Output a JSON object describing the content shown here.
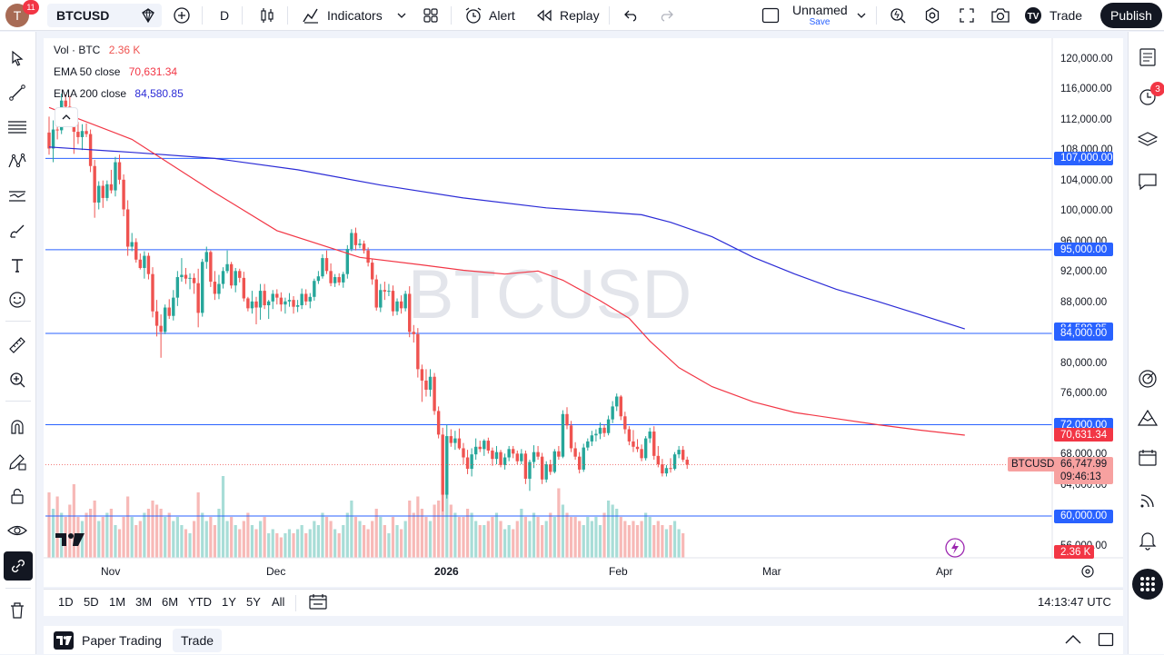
{
  "topbar": {
    "avatar_letter": "T",
    "notifications": "11",
    "symbol": "BTCUSD",
    "interval": "D",
    "indicators_label": "Indicators",
    "alert_label": "Alert",
    "replay_label": "Replay",
    "layout_name": "Unnamed",
    "layout_save": "Save",
    "trade_label": "Trade",
    "publish_label": "Publish"
  },
  "legend": {
    "vol_label": "Vol · BTC",
    "vol_value": "2.36 K",
    "ema50_label": "EMA 50 close",
    "ema50_value": "70,631.34",
    "ema200_label": "EMA 200 close",
    "ema200_value": "84,580.85"
  },
  "watermark": "BTCUSD",
  "price_axis": {
    "ticks": [
      "120,000.00",
      "116,000.00",
      "112,000.00",
      "108,000.00",
      "104,000.00",
      "100,000.00",
      "96,000.00",
      "92,000.00",
      "88,000.00",
      "84,000.00",
      "80,000.00",
      "76,000.00",
      "72,000.00",
      "68,000.00",
      "64,000.00",
      "60,000.00",
      "56,000.00"
    ],
    "ema200_tag": "84,580.85",
    "ema50_tag": "70,631.34",
    "last_price": "66,747.99",
    "countdown": "09:46:13",
    "symbol_tag": "BTCUSD",
    "volume_tag": "2.36 K"
  },
  "time_axis": {
    "ticks": [
      "Nov",
      "Dec",
      "2026",
      "Feb",
      "Mar",
      "Apr"
    ]
  },
  "ranges": [
    "1D",
    "5D",
    "1M",
    "3M",
    "6M",
    "YTD",
    "1Y",
    "5Y",
    "All"
  ],
  "clock": "14:13:47 UTC",
  "panel": {
    "paper_trading": "Paper Trading",
    "trade": "Trade"
  },
  "right_toolbar": {
    "alerts_badge": "3"
  },
  "colors": {
    "up": "#26a69a",
    "down": "#ef5350",
    "ema50": "#f23645",
    "ema200": "#2b2bd6",
    "hline": "#2962ff",
    "tag_blue": "#2962ff",
    "tag_red": "#f23645"
  },
  "chart_data": {
    "type": "candlestick",
    "symbol": "BTCUSD",
    "ylim": [
      54000,
      122500
    ],
    "horizontal_levels": [
      107000,
      95000,
      84000,
      72000,
      60000
    ],
    "x_ticks": [
      "Nov",
      "Dec",
      "2026",
      "Feb",
      "Mar",
      "Apr"
    ],
    "ohlc": [
      [
        110400,
        112500,
        107500,
        108300
      ],
      [
        108300,
        112000,
        106500,
        110800
      ],
      [
        110800,
        113200,
        109500,
        110700
      ],
      [
        110700,
        115500,
        110200,
        114600
      ],
      [
        114600,
        115400,
        113400,
        113800
      ],
      [
        113800,
        115200,
        111200,
        111800
      ],
      [
        111800,
        113500,
        107600,
        110500
      ],
      [
        110500,
        111800,
        108900,
        109800
      ],
      [
        109800,
        111500,
        108100,
        110600
      ],
      [
        110600,
        111600,
        109800,
        110200
      ],
      [
        110200,
        110800,
        105200,
        106000
      ],
      [
        106000,
        106800,
        99200,
        101200
      ],
      [
        101200,
        104000,
        100300,
        103400
      ],
      [
        103400,
        104100,
        100500,
        101800
      ],
      [
        101800,
        104100,
        101400,
        103600
      ],
      [
        103600,
        105500,
        102400,
        102800
      ],
      [
        102800,
        107200,
        102000,
        106500
      ],
      [
        106500,
        107500,
        103600,
        104200
      ],
      [
        104200,
        104900,
        99400,
        100300
      ],
      [
        100300,
        101500,
        94200,
        95400
      ],
      [
        95400,
        97200,
        94800,
        96000
      ],
      [
        96000,
        96500,
        93300,
        93700
      ],
      [
        93700,
        94500,
        92400,
        92600
      ],
      [
        92600,
        94800,
        91200,
        94200
      ],
      [
        94200,
        94600,
        91100,
        91800
      ],
      [
        91800,
        92700,
        86100,
        86900
      ],
      [
        86900,
        88400,
        83600,
        85000
      ],
      [
        85000,
        86500,
        80800,
        84200
      ],
      [
        84200,
        87800,
        83900,
        87400
      ],
      [
        87400,
        88500,
        85900,
        86300
      ],
      [
        86300,
        89700,
        85700,
        88700
      ],
      [
        88700,
        92200,
        87600,
        91400
      ],
      [
        91400,
        93900,
        90800,
        91700
      ],
      [
        91700,
        92600,
        90500,
        91200
      ],
      [
        91200,
        91900,
        89800,
        91300
      ],
      [
        91300,
        91900,
        89200,
        90600
      ],
      [
        90600,
        92500,
        84800,
        86700
      ],
      [
        86700,
        93800,
        86200,
        93400
      ],
      [
        93400,
        95400,
        92500,
        94700
      ],
      [
        94700,
        94900,
        90100,
        90800
      ],
      [
        90800,
        92200,
        88400,
        89200
      ],
      [
        89200,
        91700,
        88500,
        90500
      ],
      [
        90500,
        92700,
        89900,
        92200
      ],
      [
        92200,
        94900,
        91900,
        93100
      ],
      [
        93100,
        93400,
        89900,
        90300
      ],
      [
        90300,
        92600,
        89400,
        92200
      ],
      [
        92200,
        92500,
        90700,
        91300
      ],
      [
        91300,
        92100,
        88200,
        88600
      ],
      [
        88600,
        88800,
        86900,
        87300
      ],
      [
        87300,
        89600,
        86600,
        88200
      ],
      [
        88200,
        88800,
        85200,
        87400
      ],
      [
        87400,
        90500,
        85800,
        89600
      ],
      [
        89600,
        90500,
        87200,
        87700
      ],
      [
        87700,
        88400,
        85900,
        88200
      ],
      [
        88200,
        89700,
        87200,
        89200
      ],
      [
        89200,
        89800,
        87800,
        88700
      ],
      [
        88700,
        89400,
        86900,
        87800
      ],
      [
        87800,
        88700,
        86600,
        88200
      ],
      [
        88200,
        89300,
        87500,
        88400
      ],
      [
        88400,
        88900,
        86600,
        87500
      ],
      [
        87500,
        88400,
        86800,
        87700
      ],
      [
        87700,
        89900,
        87200,
        89200
      ],
      [
        89200,
        89800,
        87700,
        88200
      ],
      [
        88200,
        89300,
        87300,
        88800
      ],
      [
        88800,
        91200,
        88300,
        90900
      ],
      [
        90900,
        92200,
        90500,
        91500
      ],
      [
        91500,
        94400,
        91200,
        93900
      ],
      [
        93900,
        94900,
        91800,
        92200
      ],
      [
        92200,
        93200,
        90200,
        90600
      ],
      [
        90600,
        91800,
        90100,
        91400
      ],
      [
        91400,
        91900,
        90300,
        90700
      ],
      [
        90700,
        92100,
        90000,
        91800
      ],
      [
        91800,
        95600,
        91200,
        95100
      ],
      [
        95100,
        97700,
        94800,
        97200
      ],
      [
        97200,
        97900,
        94900,
        95600
      ],
      [
        95600,
        96400,
        95200,
        95800
      ],
      [
        95800,
        96200,
        94500,
        94900
      ],
      [
        94900,
        95300,
        92800,
        93300
      ],
      [
        93300,
        93800,
        90400,
        91100
      ],
      [
        91100,
        91700,
        87000,
        87400
      ],
      [
        87400,
        90500,
        86800,
        89700
      ],
      [
        89700,
        90800,
        88400,
        89500
      ],
      [
        89500,
        90500,
        88900,
        89600
      ],
      [
        89600,
        90300,
        86300,
        86900
      ],
      [
        86900,
        88600,
        86400,
        88200
      ],
      [
        88200,
        89000,
        86600,
        87300
      ],
      [
        87300,
        89600,
        86900,
        89200
      ],
      [
        89200,
        90200,
        83500,
        84200
      ],
      [
        84200,
        85100,
        82800,
        83900
      ],
      [
        83900,
        84700,
        78200,
        79300
      ],
      [
        79300,
        79900,
        75000,
        77800
      ],
      [
        77800,
        79300,
        75700,
        76600
      ],
      [
        76600,
        79300,
        75700,
        78300
      ],
      [
        78300,
        78800,
        73300,
        73800
      ],
      [
        73800,
        74400,
        70200,
        70700
      ],
      [
        70700,
        71600,
        60600,
        62800
      ],
      [
        62800,
        72000,
        62300,
        70500
      ],
      [
        70500,
        71400,
        69100,
        69600
      ],
      [
        69600,
        71200,
        68700,
        70200
      ],
      [
        70200,
        71500,
        68700,
        68900
      ],
      [
        68900,
        69600,
        66800,
        67700
      ],
      [
        67700,
        68700,
        65500,
        66200
      ],
      [
        66200,
        68900,
        65200,
        68100
      ],
      [
        68100,
        70200,
        67400,
        69100
      ],
      [
        69100,
        69900,
        68400,
        68800
      ],
      [
        68800,
        70100,
        67900,
        69900
      ],
      [
        69900,
        70300,
        68200,
        68600
      ],
      [
        68600,
        69000,
        66600,
        67500
      ],
      [
        67500,
        69200,
        66800,
        68400
      ],
      [
        68400,
        68700,
        66400,
        66700
      ],
      [
        66700,
        68200,
        66100,
        67700
      ],
      [
        67700,
        69200,
        67200,
        68800
      ],
      [
        68800,
        69200,
        67600,
        68200
      ],
      [
        68200,
        68600,
        66800,
        67200
      ],
      [
        67200,
        68800,
        66800,
        68200
      ],
      [
        68200,
        68600,
        64200,
        64900
      ],
      [
        64900,
        67400,
        63300,
        67100
      ],
      [
        67100,
        69300,
        66300,
        68400
      ],
      [
        68400,
        69200,
        67400,
        67800
      ],
      [
        67800,
        68300,
        64200,
        64800
      ],
      [
        64800,
        67200,
        64400,
        66800
      ],
      [
        66800,
        67400,
        65400,
        65800
      ],
      [
        65800,
        68800,
        65600,
        68500
      ],
      [
        68500,
        69200,
        67400,
        67800
      ],
      [
        67800,
        73900,
        67600,
        73400
      ],
      [
        73400,
        74300,
        71400,
        71900
      ],
      [
        71900,
        72500,
        68400,
        68900
      ],
      [
        68900,
        69700,
        67400,
        67800
      ],
      [
        67800,
        68400,
        65600,
        66100
      ],
      [
        66100,
        69500,
        65800,
        69000
      ],
      [
        69000,
        70200,
        68600,
        69800
      ],
      [
        69800,
        71200,
        69200,
        70600
      ],
      [
        70600,
        71400,
        69800,
        70800
      ],
      [
        70800,
        72300,
        70100,
        71600
      ],
      [
        71600,
        72000,
        70400,
        70900
      ],
      [
        70900,
        73200,
        70600,
        72700
      ],
      [
        72700,
        75100,
        72200,
        74400
      ],
      [
        74400,
        76100,
        73800,
        75700
      ],
      [
        75700,
        75900,
        72600,
        73100
      ],
      [
        73100,
        73700,
        70800,
        71400
      ],
      [
        71400,
        71800,
        69300,
        69800
      ],
      [
        69800,
        71300,
        68400,
        69100
      ],
      [
        69100,
        70100,
        68400,
        68800
      ],
      [
        68800,
        69400,
        67200,
        67600
      ],
      [
        67600,
        70500,
        67300,
        70200
      ],
      [
        70200,
        71600,
        69600,
        71100
      ],
      [
        71100,
        71800,
        67400,
        67900
      ],
      [
        67900,
        69200,
        66400,
        66800
      ],
      [
        66800,
        67500,
        65200,
        65600
      ],
      [
        65600,
        66700,
        65200,
        66300
      ],
      [
        66300,
        67600,
        65700,
        66200
      ],
      [
        66200,
        68400,
        66000,
        68100
      ],
      [
        68100,
        69200,
        67600,
        68700
      ],
      [
        68700,
        69200,
        67100,
        67400
      ],
      [
        67400,
        67800,
        66200,
        66748
      ]
    ],
    "ema50": [
      [
        0,
        113700
      ],
      [
        20,
        109500
      ],
      [
        40,
        102500
      ],
      [
        55,
        97500
      ],
      [
        75,
        94000
      ],
      [
        90,
        93000
      ],
      [
        100,
        92300
      ],
      [
        110,
        91800
      ],
      [
        118,
        92200
      ],
      [
        124,
        91000
      ],
      [
        133,
        88300
      ],
      [
        140,
        86000
      ],
      [
        145,
        83000
      ],
      [
        152,
        79500
      ],
      [
        160,
        77000
      ],
      [
        170,
        75000
      ],
      [
        180,
        73600
      ],
      [
        190,
        72800
      ],
      [
        200,
        72000
      ],
      [
        210,
        71300
      ],
      [
        221,
        70631
      ]
    ],
    "ema200": [
      [
        0,
        108500
      ],
      [
        20,
        107800
      ],
      [
        40,
        107000
      ],
      [
        60,
        105500
      ],
      [
        80,
        103500
      ],
      [
        100,
        101800
      ],
      [
        120,
        100500
      ],
      [
        133,
        100000
      ],
      [
        143,
        99600
      ],
      [
        150,
        98600
      ],
      [
        160,
        96700
      ],
      [
        170,
        94000
      ],
      [
        180,
        91800
      ],
      [
        190,
        89800
      ],
      [
        200,
        88200
      ],
      [
        210,
        86500
      ],
      [
        221,
        84581
      ]
    ],
    "volume": [
      0.8,
      0.6,
      0.75,
      0.55,
      0.5,
      0.65,
      0.9,
      0.5,
      0.45,
      0.55,
      0.6,
      0.7,
      0.45,
      0.5,
      0.55,
      0.6,
      0.4,
      0.35,
      0.5,
      0.75,
      0.5,
      0.4,
      0.45,
      0.55,
      0.6,
      0.7,
      0.65,
      0.6,
      0.5,
      0.55,
      0.45,
      0.5,
      0.4,
      0.35,
      0.3,
      0.45,
      0.8,
      0.55,
      0.45,
      0.5,
      0.4,
      0.6,
      1.0,
      0.45,
      0.5,
      0.4,
      0.35,
      0.45,
      0.55,
      0.4,
      0.35,
      0.45,
      0.5,
      0.3,
      0.35,
      0.3,
      0.25,
      0.3,
      0.35,
      0.3,
      0.35,
      0.4,
      0.3,
      0.35,
      0.45,
      0.4,
      0.55,
      0.5,
      0.45,
      0.35,
      0.3,
      0.4,
      0.55,
      0.7,
      0.5,
      0.45,
      0.4,
      0.35,
      0.45,
      0.6,
      0.5,
      0.4,
      0.3,
      0.5,
      0.4,
      0.35,
      0.45,
      0.7,
      0.55,
      0.75,
      0.6,
      0.5,
      0.45,
      0.65,
      0.7,
      1.0,
      0.95,
      0.65,
      0.55,
      0.5,
      0.5,
      0.6,
      0.55,
      0.45,
      0.4,
      0.4,
      0.45,
      0.5,
      0.55,
      0.45,
      0.35,
      0.4,
      0.35,
      0.45,
      0.6,
      0.5,
      0.45,
      0.55,
      0.5,
      0.4,
      0.45,
      0.55,
      0.5,
      0.85,
      0.65,
      0.55,
      0.5,
      0.5,
      0.45,
      0.4,
      0.5,
      0.45,
      0.5,
      0.4,
      0.55,
      0.7,
      0.65,
      0.6,
      0.5,
      0.45,
      0.4,
      0.45,
      0.4,
      0.45,
      0.55,
      0.5,
      0.4,
      0.45,
      0.4,
      0.35,
      0.4,
      0.45,
      0.35,
      0.3
    ]
  }
}
